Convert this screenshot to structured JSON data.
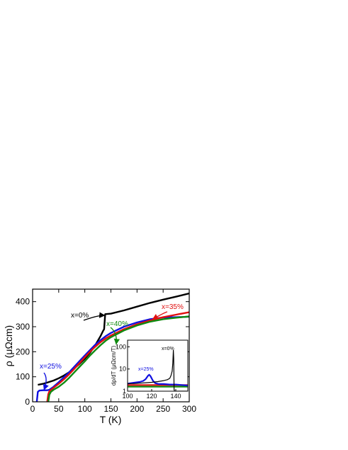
{
  "chart_data": [
    {
      "type": "line",
      "xlabel": "T (K)",
      "ylabel": "ρ (μΩcm)",
      "xlim": [
        0,
        300
      ],
      "ylim": [
        0,
        450
      ],
      "xticks": [
        0,
        50,
        100,
        150,
        200,
        250,
        300
      ],
      "yticks": [
        0,
        100,
        200,
        300,
        400
      ],
      "grid": false,
      "legend": "none",
      "series": [
        {
          "name": "x=0%",
          "color": "#000000",
          "points": [
            [
              10,
              68
            ],
            [
              20,
              72
            ],
            [
              30,
              78
            ],
            [
              40,
              85
            ],
            [
              50,
              94
            ],
            [
              60,
              105
            ],
            [
              70,
              118
            ],
            [
              80,
              134
            ],
            [
              90,
              152
            ],
            [
              100,
              172
            ],
            [
              110,
              196
            ],
            [
              120,
              226
            ],
            [
              130,
              262
            ],
            [
              135,
              283
            ],
            [
              137,
              290
            ],
            [
              139,
              350
            ],
            [
              150,
              352
            ],
            [
              175,
              365
            ],
            [
              200,
              380
            ],
            [
              225,
              395
            ],
            [
              250,
              408
            ],
            [
              275,
              420
            ],
            [
              300,
              433
            ]
          ]
        },
        {
          "name": "x=25%",
          "color": "#1010e0",
          "points": [
            [
              8,
              0
            ],
            [
              10,
              40
            ],
            [
              13,
              45
            ],
            [
              20,
              46
            ],
            [
              28,
              46
            ],
            [
              32,
              48
            ],
            [
              40,
              60
            ],
            [
              50,
              78
            ],
            [
              60,
              98
            ],
            [
              70,
              118
            ],
            [
              80,
              140
            ],
            [
              90,
              163
            ],
            [
              100,
              185
            ],
            [
              110,
              207
            ],
            [
              120,
              228
            ],
            [
              130,
              246
            ],
            [
              140,
              262
            ],
            [
              150,
              275
            ],
            [
              175,
              300
            ],
            [
              200,
              317
            ],
            [
              225,
              330
            ],
            [
              250,
              337
            ],
            [
              275,
              338
            ],
            [
              300,
              340
            ]
          ]
        },
        {
          "name": "x=35%",
          "color": "#e01010",
          "points": [
            [
              28,
              0
            ],
            [
              30,
              30
            ],
            [
              32,
              42
            ],
            [
              40,
              56
            ],
            [
              50,
              72
            ],
            [
              60,
              90
            ],
            [
              70,
              110
            ],
            [
              80,
              132
            ],
            [
              90,
              155
            ],
            [
              100,
              178
            ],
            [
              110,
              200
            ],
            [
              120,
              220
            ],
            [
              130,
              238
            ],
            [
              140,
              253
            ],
            [
              150,
              265
            ],
            [
              175,
              290
            ],
            [
              200,
              310
            ],
            [
              225,
              325
            ],
            [
              250,
              338
            ],
            [
              275,
              348
            ],
            [
              300,
              358
            ]
          ]
        },
        {
          "name": "x=40%",
          "color": "#108a10",
          "points": [
            [
              30,
              0
            ],
            [
              32,
              28
            ],
            [
              35,
              40
            ],
            [
              40,
              48
            ],
            [
              50,
              60
            ],
            [
              60,
              76
            ],
            [
              70,
              96
            ],
            [
              80,
              118
            ],
            [
              90,
              140
            ],
            [
              100,
              162
            ],
            [
              110,
              185
            ],
            [
              120,
              206
            ],
            [
              130,
              226
            ],
            [
              140,
              244
            ],
            [
              150,
              258
            ],
            [
              175,
              285
            ],
            [
              200,
              305
            ],
            [
              225,
              320
            ],
            [
              250,
              330
            ],
            [
              275,
              336
            ],
            [
              300,
              341
            ]
          ]
        }
      ],
      "annotations": [
        {
          "text": "x=0%",
          "color": "#000000",
          "target": [
            138,
            345
          ]
        },
        {
          "text": "x=25%",
          "color": "#1010e0",
          "target": [
            22,
            48
          ]
        },
        {
          "text": "x=35%",
          "color": "#e01010",
          "target": [
            230,
            330
          ]
        },
        {
          "text": "x=40%",
          "color": "#108a10",
          "target": [
            160,
            230
          ]
        }
      ]
    },
    {
      "type": "line",
      "xlabel": "",
      "ylabel": "dρ/dT (μΩcm/T)",
      "xlim": [
        100,
        150
      ],
      "ylim": [
        1,
        200
      ],
      "yscale": "log",
      "xticks": [
        100,
        120,
        140
      ],
      "yticks": [
        1,
        10,
        100
      ],
      "grid": false,
      "legend": "none",
      "series": [
        {
          "name": "x=0%",
          "color": "#000000",
          "points": [
            [
              100,
              2.2
            ],
            [
              105,
              2.2
            ],
            [
              110,
              2.3
            ],
            [
              115,
              2.4
            ],
            [
              120,
              2.5
            ],
            [
              125,
              2.7
            ],
            [
              130,
              3.0
            ],
            [
              133,
              3.3
            ],
            [
              135,
              3.8
            ],
            [
              136,
              5
            ],
            [
              137,
              8
            ],
            [
              137.5,
              18
            ],
            [
              138,
              70
            ],
            [
              138.3,
              30
            ],
            [
              138.6,
              1.2
            ],
            [
              139,
              1.0
            ],
            [
              145,
              1.0
            ],
            [
              150,
              1.0
            ]
          ]
        },
        {
          "name": "x=25%",
          "color": "#1010e0",
          "points": [
            [
              100,
              2.2
            ],
            [
              105,
              2.4
            ],
            [
              110,
              2.6
            ],
            [
              113,
              2.9
            ],
            [
              115,
              3.5
            ],
            [
              117,
              5.0
            ],
            [
              118,
              5.5
            ],
            [
              119,
              4.8
            ],
            [
              121,
              3.0
            ],
            [
              123,
              2.3
            ],
            [
              126,
              2.1
            ],
            [
              130,
              2.1
            ],
            [
              135,
              2.0
            ],
            [
              140,
              2.0
            ],
            [
              145,
              1.9
            ],
            [
              150,
              1.8
            ]
          ]
        },
        {
          "name": "x=35%",
          "color": "#e01010",
          "points": [
            [
              100,
              1.9
            ],
            [
              110,
              1.9
            ],
            [
              120,
              1.9
            ],
            [
              130,
              1.9
            ],
            [
              140,
              1.9
            ],
            [
              150,
              1.9
            ]
          ]
        },
        {
          "name": "x=40%",
          "color": "#108a10",
          "points": [
            [
              100,
              1.6
            ],
            [
              110,
              1.6
            ],
            [
              120,
              1.6
            ],
            [
              130,
              1.6
            ],
            [
              140,
              1.6
            ],
            [
              150,
              1.6
            ]
          ]
        }
      ],
      "annotations": [
        {
          "text": "x=0%",
          "color": "#000000"
        },
        {
          "text": "x=25%",
          "color": "#1010e0"
        }
      ]
    }
  ]
}
